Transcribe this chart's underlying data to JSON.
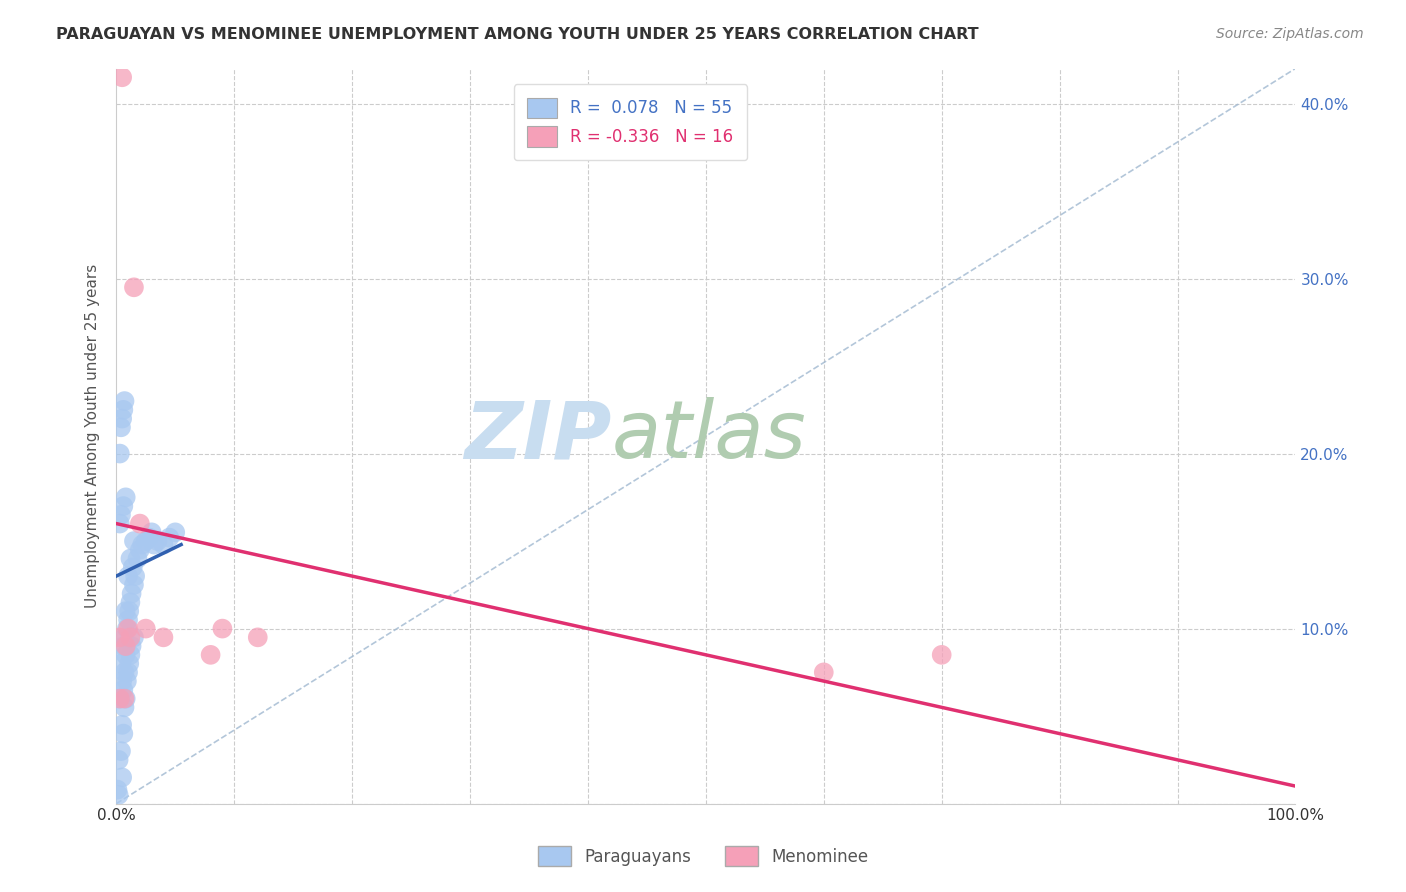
{
  "title": "PARAGUAYAN VS MENOMINEE UNEMPLOYMENT AMONG YOUTH UNDER 25 YEARS CORRELATION CHART",
  "source": "Source: ZipAtlas.com",
  "ylabel": "Unemployment Among Youth under 25 years",
  "xlim": [
    0,
    1.0
  ],
  "ylim": [
    0,
    0.42
  ],
  "yticks": [
    0.0,
    0.1,
    0.2,
    0.3,
    0.4
  ],
  "ytick_labels_right": [
    "",
    "10.0%",
    "20.0%",
    "30.0%",
    "40.0%"
  ],
  "blue_color": "#a8c8f0",
  "pink_color": "#f5a0b8",
  "blue_line_color": "#3060b0",
  "pink_line_color": "#e03070",
  "dashed_line_color": "#a0b8d0",
  "watermark_zip_color": "#c8ddf0",
  "watermark_atlas_color": "#b0ccb0",
  "legend_R_blue": "0.078",
  "legend_N_blue": "55",
  "legend_R_pink": "-0.336",
  "legend_N_pink": "16",
  "blue_scatter_x": [
    0.002,
    0.003,
    0.004,
    0.004,
    0.005,
    0.005,
    0.005,
    0.006,
    0.006,
    0.006,
    0.007,
    0.007,
    0.007,
    0.008,
    0.008,
    0.008,
    0.009,
    0.009,
    0.01,
    0.01,
    0.01,
    0.011,
    0.011,
    0.012,
    0.012,
    0.012,
    0.013,
    0.013,
    0.014,
    0.015,
    0.015,
    0.015,
    0.016,
    0.018,
    0.02,
    0.022,
    0.025,
    0.028,
    0.03,
    0.032,
    0.035,
    0.04,
    0.045,
    0.05,
    0.003,
    0.004,
    0.006,
    0.008,
    0.003,
    0.004,
    0.005,
    0.006,
    0.007,
    0.002,
    0.001
  ],
  "blue_scatter_y": [
    0.025,
    0.06,
    0.03,
    0.08,
    0.015,
    0.045,
    0.07,
    0.04,
    0.065,
    0.09,
    0.055,
    0.075,
    0.095,
    0.06,
    0.085,
    0.11,
    0.07,
    0.1,
    0.075,
    0.105,
    0.13,
    0.08,
    0.11,
    0.085,
    0.115,
    0.14,
    0.09,
    0.12,
    0.135,
    0.095,
    0.125,
    0.15,
    0.13,
    0.14,
    0.145,
    0.148,
    0.15,
    0.152,
    0.155,
    0.148,
    0.15,
    0.148,
    0.152,
    0.155,
    0.16,
    0.165,
    0.17,
    0.175,
    0.2,
    0.215,
    0.22,
    0.225,
    0.23,
    0.005,
    0.008
  ],
  "pink_scatter_x": [
    0.003,
    0.005,
    0.008,
    0.01,
    0.012,
    0.015,
    0.02,
    0.025,
    0.04,
    0.08,
    0.09,
    0.12,
    0.6,
    0.7,
    0.007,
    0.003
  ],
  "pink_scatter_y": [
    0.095,
    0.415,
    0.09,
    0.1,
    0.095,
    0.295,
    0.16,
    0.1,
    0.095,
    0.085,
    0.1,
    0.095,
    0.075,
    0.085,
    0.06,
    0.06
  ],
  "blue_trend_x0": 0.0,
  "blue_trend_y0": 0.13,
  "blue_trend_x1": 0.055,
  "blue_trend_y1": 0.148,
  "pink_trend_x0": 0.0,
  "pink_trend_y0": 0.16,
  "pink_trend_x1": 1.0,
  "pink_trend_y1": 0.01
}
